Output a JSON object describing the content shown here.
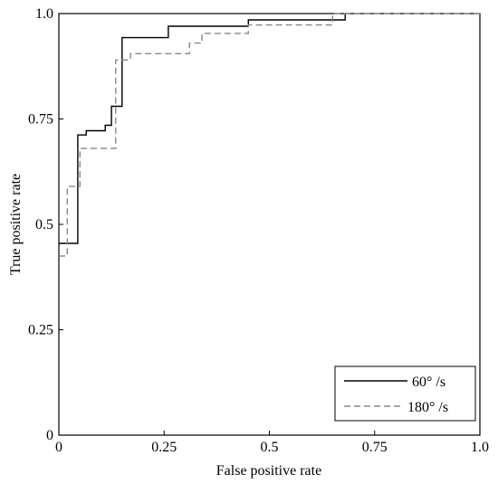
{
  "chart_data": {
    "type": "line",
    "xlabel": "False positive rate",
    "ylabel": "True positive rate",
    "xlim": [
      0,
      1
    ],
    "ylim": [
      0,
      1
    ],
    "x_ticks": [
      0,
      0.25,
      0.5,
      0.75,
      1
    ],
    "y_ticks": [
      0,
      0.25,
      0.5,
      0.75,
      1
    ],
    "x_tick_labels": [
      "0",
      "0.25",
      "0.5",
      "0.75",
      "1.0"
    ],
    "y_tick_labels": [
      "0",
      "0.25",
      "0.5",
      "0.75",
      "1.0"
    ],
    "grid": false,
    "legend_position": "bottom-right",
    "series": [
      {
        "name": "60° /s",
        "style": "solid",
        "color": "#000000",
        "x": [
          0.0,
          0.045,
          0.045,
          0.065,
          0.065,
          0.11,
          0.11,
          0.125,
          0.125,
          0.14,
          0.14,
          0.15,
          0.15,
          0.26,
          0.26,
          0.45,
          0.45,
          0.67,
          0.67,
          0.68,
          0.68
        ],
        "y": [
          0.455,
          0.455,
          0.712,
          0.712,
          0.722,
          0.722,
          0.735,
          0.735,
          0.78,
          0.78,
          0.78,
          0.78,
          0.943,
          0.943,
          0.97,
          0.97,
          0.985,
          0.985,
          0.985,
          0.985,
          1.0
        ]
      },
      {
        "name": "180° /s",
        "style": "dashed",
        "color": "#888888",
        "x": [
          0.0,
          0.02,
          0.02,
          0.05,
          0.05,
          0.135,
          0.135,
          0.17,
          0.17,
          0.31,
          0.31,
          0.34,
          0.34,
          0.45,
          0.45,
          0.65,
          0.65,
          1.0
        ],
        "y": [
          0.425,
          0.425,
          0.59,
          0.59,
          0.68,
          0.68,
          0.89,
          0.89,
          0.905,
          0.905,
          0.93,
          0.93,
          0.953,
          0.953,
          0.973,
          0.973,
          1.0,
          1.0
        ]
      }
    ]
  }
}
